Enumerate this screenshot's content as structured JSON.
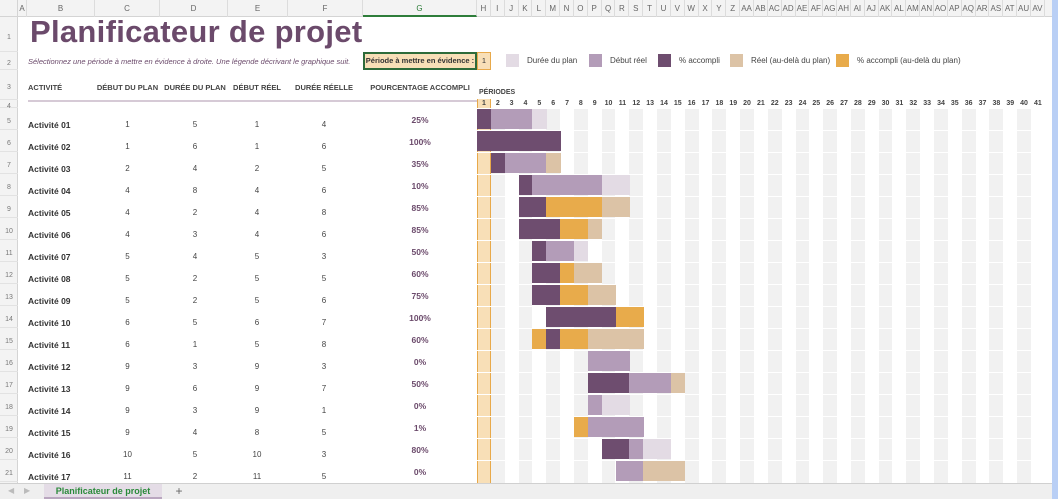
{
  "title": "Planificateur de projet",
  "subtitle": "Sélectionnez une période à mettre en évidence à droite.  Une légende décrivant le graphique suit.",
  "highlight": {
    "label": "Période à mettre en évidence :",
    "value": "1"
  },
  "legend": [
    {
      "label": "Durée du plan",
      "color": "#e3dbe4"
    },
    {
      "label": "Début réel",
      "color": "#b39cb8"
    },
    {
      "label": "% accompli",
      "color": "#6e4d6f"
    },
    {
      "label": "Réel (au-delà du plan)",
      "color": "#dcc3a6"
    },
    {
      "label": "% accompli (au-delà du plan)",
      "color": "#e8ab4b"
    }
  ],
  "columns": [
    "A",
    "B",
    "C",
    "D",
    "E",
    "F",
    "G",
    "H",
    "I",
    "J",
    "K",
    "L",
    "M",
    "N",
    "O",
    "P",
    "Q",
    "R",
    "S",
    "T",
    "U",
    "V",
    "W",
    "X",
    "Y",
    "Z",
    "AA",
    "AB",
    "AC",
    "AD",
    "AE",
    "AF",
    "AG",
    "AH",
    "AI",
    "AJ",
    "AK",
    "AL",
    "AM",
    "AN",
    "AO",
    "AP",
    "AQ",
    "AR",
    "AS",
    "AT",
    "AU",
    "AV"
  ],
  "headers": {
    "activity": "ACTIVITÉ",
    "plan_start": "DÉBUT DU PLAN",
    "plan_duration": "DURÉE DU PLAN",
    "actual_start": "DÉBUT RÉEL",
    "actual_duration": "DURÉE RÉELLE",
    "percent": "POURCENTAGE ACCOMPLI",
    "periods": "PÉRIODES"
  },
  "highlighted_period": 1,
  "period_count": 41,
  "activities": [
    {
      "name": "Activité 01",
      "plan_start": 1,
      "plan_duration": 5,
      "actual_start": 1,
      "actual_duration": 4,
      "percent": "25%"
    },
    {
      "name": "Activité 02",
      "plan_start": 1,
      "plan_duration": 6,
      "actual_start": 1,
      "actual_duration": 6,
      "percent": "100%"
    },
    {
      "name": "Activité 03",
      "plan_start": 2,
      "plan_duration": 4,
      "actual_start": 2,
      "actual_duration": 5,
      "percent": "35%"
    },
    {
      "name": "Activité 04",
      "plan_start": 4,
      "plan_duration": 8,
      "actual_start": 4,
      "actual_duration": 6,
      "percent": "10%"
    },
    {
      "name": "Activité 05",
      "plan_start": 4,
      "plan_duration": 2,
      "actual_start": 4,
      "actual_duration": 8,
      "percent": "85%"
    },
    {
      "name": "Activité 06",
      "plan_start": 4,
      "plan_duration": 3,
      "actual_start": 4,
      "actual_duration": 6,
      "percent": "85%"
    },
    {
      "name": "Activité 07",
      "plan_start": 5,
      "plan_duration": 4,
      "actual_start": 5,
      "actual_duration": 3,
      "percent": "50%"
    },
    {
      "name": "Activité 08",
      "plan_start": 5,
      "plan_duration": 2,
      "actual_start": 5,
      "actual_duration": 5,
      "percent": "60%"
    },
    {
      "name": "Activité 09",
      "plan_start": 5,
      "plan_duration": 2,
      "actual_start": 5,
      "actual_duration": 6,
      "percent": "75%"
    },
    {
      "name": "Activité 10",
      "plan_start": 6,
      "plan_duration": 5,
      "actual_start": 6,
      "actual_duration": 7,
      "percent": "100%"
    },
    {
      "name": "Activité 11",
      "plan_start": 6,
      "plan_duration": 1,
      "actual_start": 5,
      "actual_duration": 8,
      "percent": "60%"
    },
    {
      "name": "Activité 12",
      "plan_start": 9,
      "plan_duration": 3,
      "actual_start": 9,
      "actual_duration": 3,
      "percent": "0%"
    },
    {
      "name": "Activité 13",
      "plan_start": 9,
      "plan_duration": 6,
      "actual_start": 9,
      "actual_duration": 7,
      "percent": "50%"
    },
    {
      "name": "Activité 14",
      "plan_start": 9,
      "plan_duration": 3,
      "actual_start": 9,
      "actual_duration": 1,
      "percent": "0%"
    },
    {
      "name": "Activité 15",
      "plan_start": 9,
      "plan_duration": 4,
      "actual_start": 8,
      "actual_duration": 5,
      "percent": "1%"
    },
    {
      "name": "Activité 16",
      "plan_start": 10,
      "plan_duration": 5,
      "actual_start": 10,
      "actual_duration": 3,
      "percent": "80%"
    },
    {
      "name": "Activité 17",
      "plan_start": 11,
      "plan_duration": 2,
      "actual_start": 11,
      "actual_duration": 5,
      "percent": "0%"
    }
  ],
  "sheet_tab": "Planificateur de projet",
  "add_sheet": "+",
  "nav": {
    "prev": "◀",
    "next": "▶"
  }
}
